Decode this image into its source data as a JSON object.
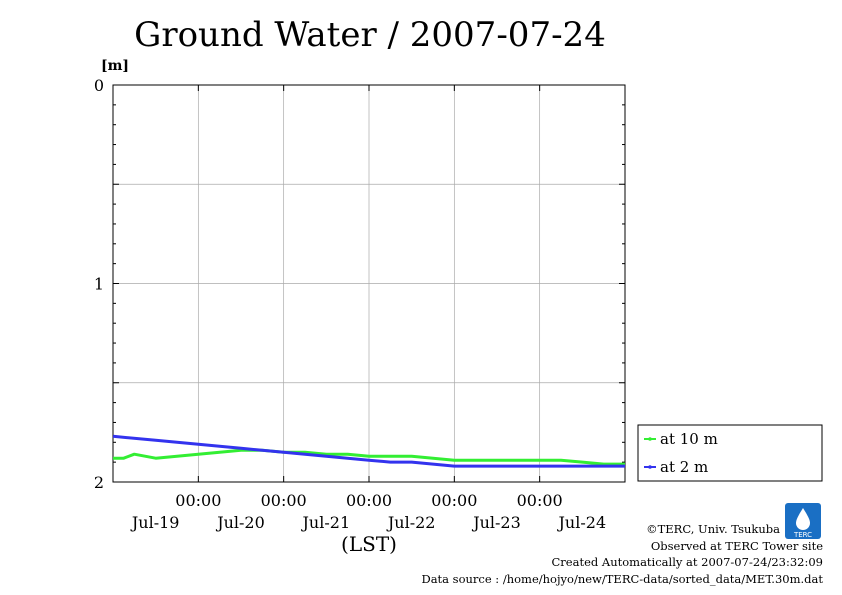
{
  "chart_data": {
    "type": "line",
    "title": "Ground Water / 2007-07-24",
    "ylabel": "[m]",
    "xlabel": "(LST)",
    "ylim": [
      0,
      2
    ],
    "y_inverted": true,
    "yticks": [
      "0",
      "1",
      "2"
    ],
    "xlim": [
      "2007-07-18 00:00",
      "2007-07-24 00:00"
    ],
    "xticks": [
      {
        "time": "2007-07-19 00:00",
        "hour": "00:00",
        "date": "Jul-19"
      },
      {
        "time": "2007-07-20 00:00",
        "hour": "00:00",
        "date": "Jul-20"
      },
      {
        "time": "2007-07-21 00:00",
        "hour": "00:00",
        "date": "Jul-21"
      },
      {
        "time": "2007-07-22 00:00",
        "hour": "00:00",
        "date": "Jul-22"
      },
      {
        "time": "2007-07-23 00:00",
        "hour": "00:00",
        "date": "Jul-23"
      }
    ],
    "xtick_date_labels": [
      "Jul-19",
      "Jul-20",
      "Jul-21",
      "Jul-22",
      "Jul-23",
      "Jul-24"
    ],
    "grid": true,
    "legend_placement": "right",
    "series": [
      {
        "name": "at 10 m",
        "color": "#33ee33",
        "points": [
          [
            "2007-07-18 00:00",
            1.88
          ],
          [
            "2007-07-18 03:00",
            1.88
          ],
          [
            "2007-07-18 06:00",
            1.86
          ],
          [
            "2007-07-18 09:00",
            1.87
          ],
          [
            "2007-07-18 12:00",
            1.88
          ],
          [
            "2007-07-18 18:00",
            1.87
          ],
          [
            "2007-07-19 00:00",
            1.86
          ],
          [
            "2007-07-19 06:00",
            1.85
          ],
          [
            "2007-07-19 12:00",
            1.84
          ],
          [
            "2007-07-19 18:00",
            1.84
          ],
          [
            "2007-07-20 00:00",
            1.85
          ],
          [
            "2007-07-20 06:00",
            1.85
          ],
          [
            "2007-07-20 12:00",
            1.86
          ],
          [
            "2007-07-20 18:00",
            1.86
          ],
          [
            "2007-07-21 00:00",
            1.87
          ],
          [
            "2007-07-21 06:00",
            1.87
          ],
          [
            "2007-07-21 12:00",
            1.87
          ],
          [
            "2007-07-21 18:00",
            1.88
          ],
          [
            "2007-07-22 00:00",
            1.89
          ],
          [
            "2007-07-22 06:00",
            1.89
          ],
          [
            "2007-07-22 12:00",
            1.89
          ],
          [
            "2007-07-22 18:00",
            1.89
          ],
          [
            "2007-07-23 00:00",
            1.89
          ],
          [
            "2007-07-23 06:00",
            1.89
          ],
          [
            "2007-07-23 12:00",
            1.9
          ],
          [
            "2007-07-23 18:00",
            1.91
          ],
          [
            "2007-07-24 00:00",
            1.91
          ]
        ]
      },
      {
        "name": "at 2 m",
        "color": "#3333ee",
        "points": [
          [
            "2007-07-18 00:00",
            1.77
          ],
          [
            "2007-07-18 12:00",
            1.79
          ],
          [
            "2007-07-19 00:00",
            1.81
          ],
          [
            "2007-07-19 12:00",
            1.83
          ],
          [
            "2007-07-20 00:00",
            1.85
          ],
          [
            "2007-07-20 12:00",
            1.87
          ],
          [
            "2007-07-21 00:00",
            1.89
          ],
          [
            "2007-07-21 06:00",
            1.9
          ],
          [
            "2007-07-21 12:00",
            1.9
          ],
          [
            "2007-07-21 18:00",
            1.91
          ],
          [
            "2007-07-22 00:00",
            1.92
          ],
          [
            "2007-07-22 12:00",
            1.92
          ],
          [
            "2007-07-23 00:00",
            1.92
          ],
          [
            "2007-07-23 12:00",
            1.92
          ],
          [
            "2007-07-24 00:00",
            1.92
          ]
        ]
      }
    ]
  },
  "footer": {
    "copyright": "©TERC, Univ. Tsukuba",
    "observed": "Observed at TERC Tower site",
    "created": "Created Automatically at 2007-07-24/23:32:09",
    "source": "Data source : /home/hojyo/new/TERC-data/sorted_data/MET.30m.dat",
    "logo_text": "TERC",
    "logo_color": "#1a6fc4"
  }
}
